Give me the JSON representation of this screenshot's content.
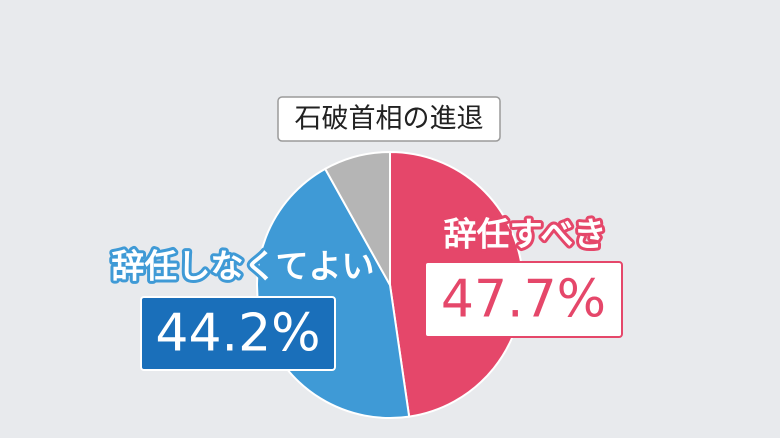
{
  "chart_data": {
    "type": "pie",
    "title": "石破首相の進退",
    "categories": [
      "辞任すべき",
      "辞任しなくてよい",
      null
    ],
    "values": [
      47.7,
      44.2,
      8.1
    ],
    "value_labels": [
      "47.7%",
      "44.2%",
      null
    ],
    "colors": [
      "#e5476a",
      "#3f9ad6",
      "#b5b5b5"
    ]
  }
}
